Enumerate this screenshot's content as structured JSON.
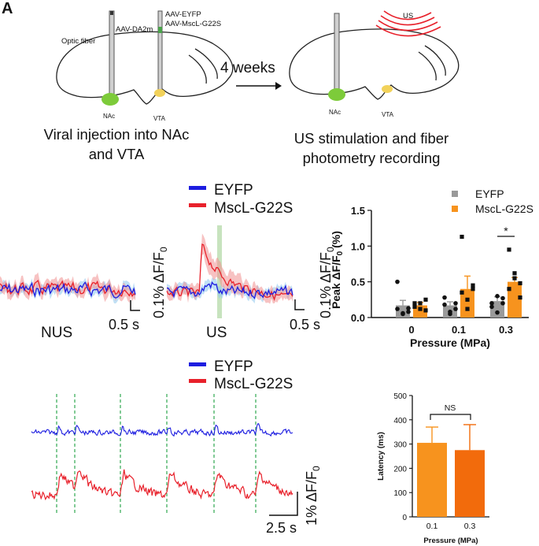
{
  "panel_label": "A",
  "schematic": {
    "optic_fiber": "Optic fiber",
    "aav_da": "AAV-DA2m",
    "aav_eyfp": "AAV-EYFP",
    "aav_mscl": "AAV-MscL-G22S",
    "nac": "NAc",
    "vta": "VTA",
    "arrow_label": "4 weeks",
    "us": "US",
    "caption_left_1": "Viral injection into NAc",
    "caption_left_2": "and VTA",
    "caption_right_1": "US stimulation and fiber",
    "caption_right_2": "photometry recording"
  },
  "traces": {
    "legend_eyfp": "EYFP",
    "legend_mscl": "MscL-G22S",
    "nus": "NUS",
    "us": "US",
    "scale_y": "0.1% ΔF/F",
    "scale_y_sub": "0",
    "scale_x": "0.5 s"
  },
  "raw": {
    "legend_eyfp": "EYFP",
    "legend_mscl": "MscL-G22S",
    "scale_y": "1% ΔF/F",
    "scale_y_sub": "0",
    "scale_x": "2.5 s"
  },
  "colors": {
    "eyfp": "#1d1de0",
    "mscl": "#e8212b",
    "gray": "#9a9a9a",
    "orange": "#f7931e",
    "orange_dark": "#f26b0c"
  },
  "chart_data": [
    {
      "type": "bar",
      "title": "",
      "ylabel_main": "Peak ΔF/F",
      "ylabel_sub": "0",
      "ylabel_unit": "(%)",
      "xlabel": "Pressure (MPa)",
      "categories": [
        "0",
        "0.1",
        "0.3"
      ],
      "ylim": [
        0,
        1.5
      ],
      "yticks": [
        "0.0",
        "0.5",
        "1.0",
        "1.5"
      ],
      "series": [
        {
          "name": "EYFP",
          "values": [
            0.17,
            0.17,
            0.23
          ],
          "errors": [
            0.07,
            0.05,
            0.06
          ]
        },
        {
          "name": "MscL-G22S",
          "values": [
            0.17,
            0.4,
            0.5
          ],
          "errors": [
            0.04,
            0.18,
            0.06
          ]
        }
      ],
      "points": {
        "EYFP": [
          [
            0.12,
            0.05,
            0.08,
            0.5,
            0.06,
            0.13
          ],
          [
            0.28,
            0.05,
            0.12,
            0.18,
            0.08,
            0.2
          ],
          [
            0.2,
            0.07,
            0.27,
            0.15,
            0.3,
            0.2
          ]
        ],
        "MscL-G22S": [
          [
            0.2,
            0.12,
            0.25,
            0.15,
            0.2,
            0.1
          ],
          [
            1.13,
            0.25,
            0.45,
            0.35,
            0.12,
            0.4
          ],
          [
            0.95,
            0.62,
            0.48,
            0.4,
            0.55,
            0.28
          ]
        ]
      },
      "annotation": "*"
    },
    {
      "type": "bar",
      "title": "",
      "ylabel": "Latency (ms)",
      "xlabel": "Pressure (MPa)",
      "categories": [
        "0.1",
        "0.3"
      ],
      "values": [
        305,
        275
      ],
      "errors": [
        65,
        105
      ],
      "ylim": [
        0,
        500
      ],
      "yticks": [
        "0",
        "100",
        "200",
        "300",
        "400",
        "500"
      ],
      "annotation": "NS"
    }
  ]
}
